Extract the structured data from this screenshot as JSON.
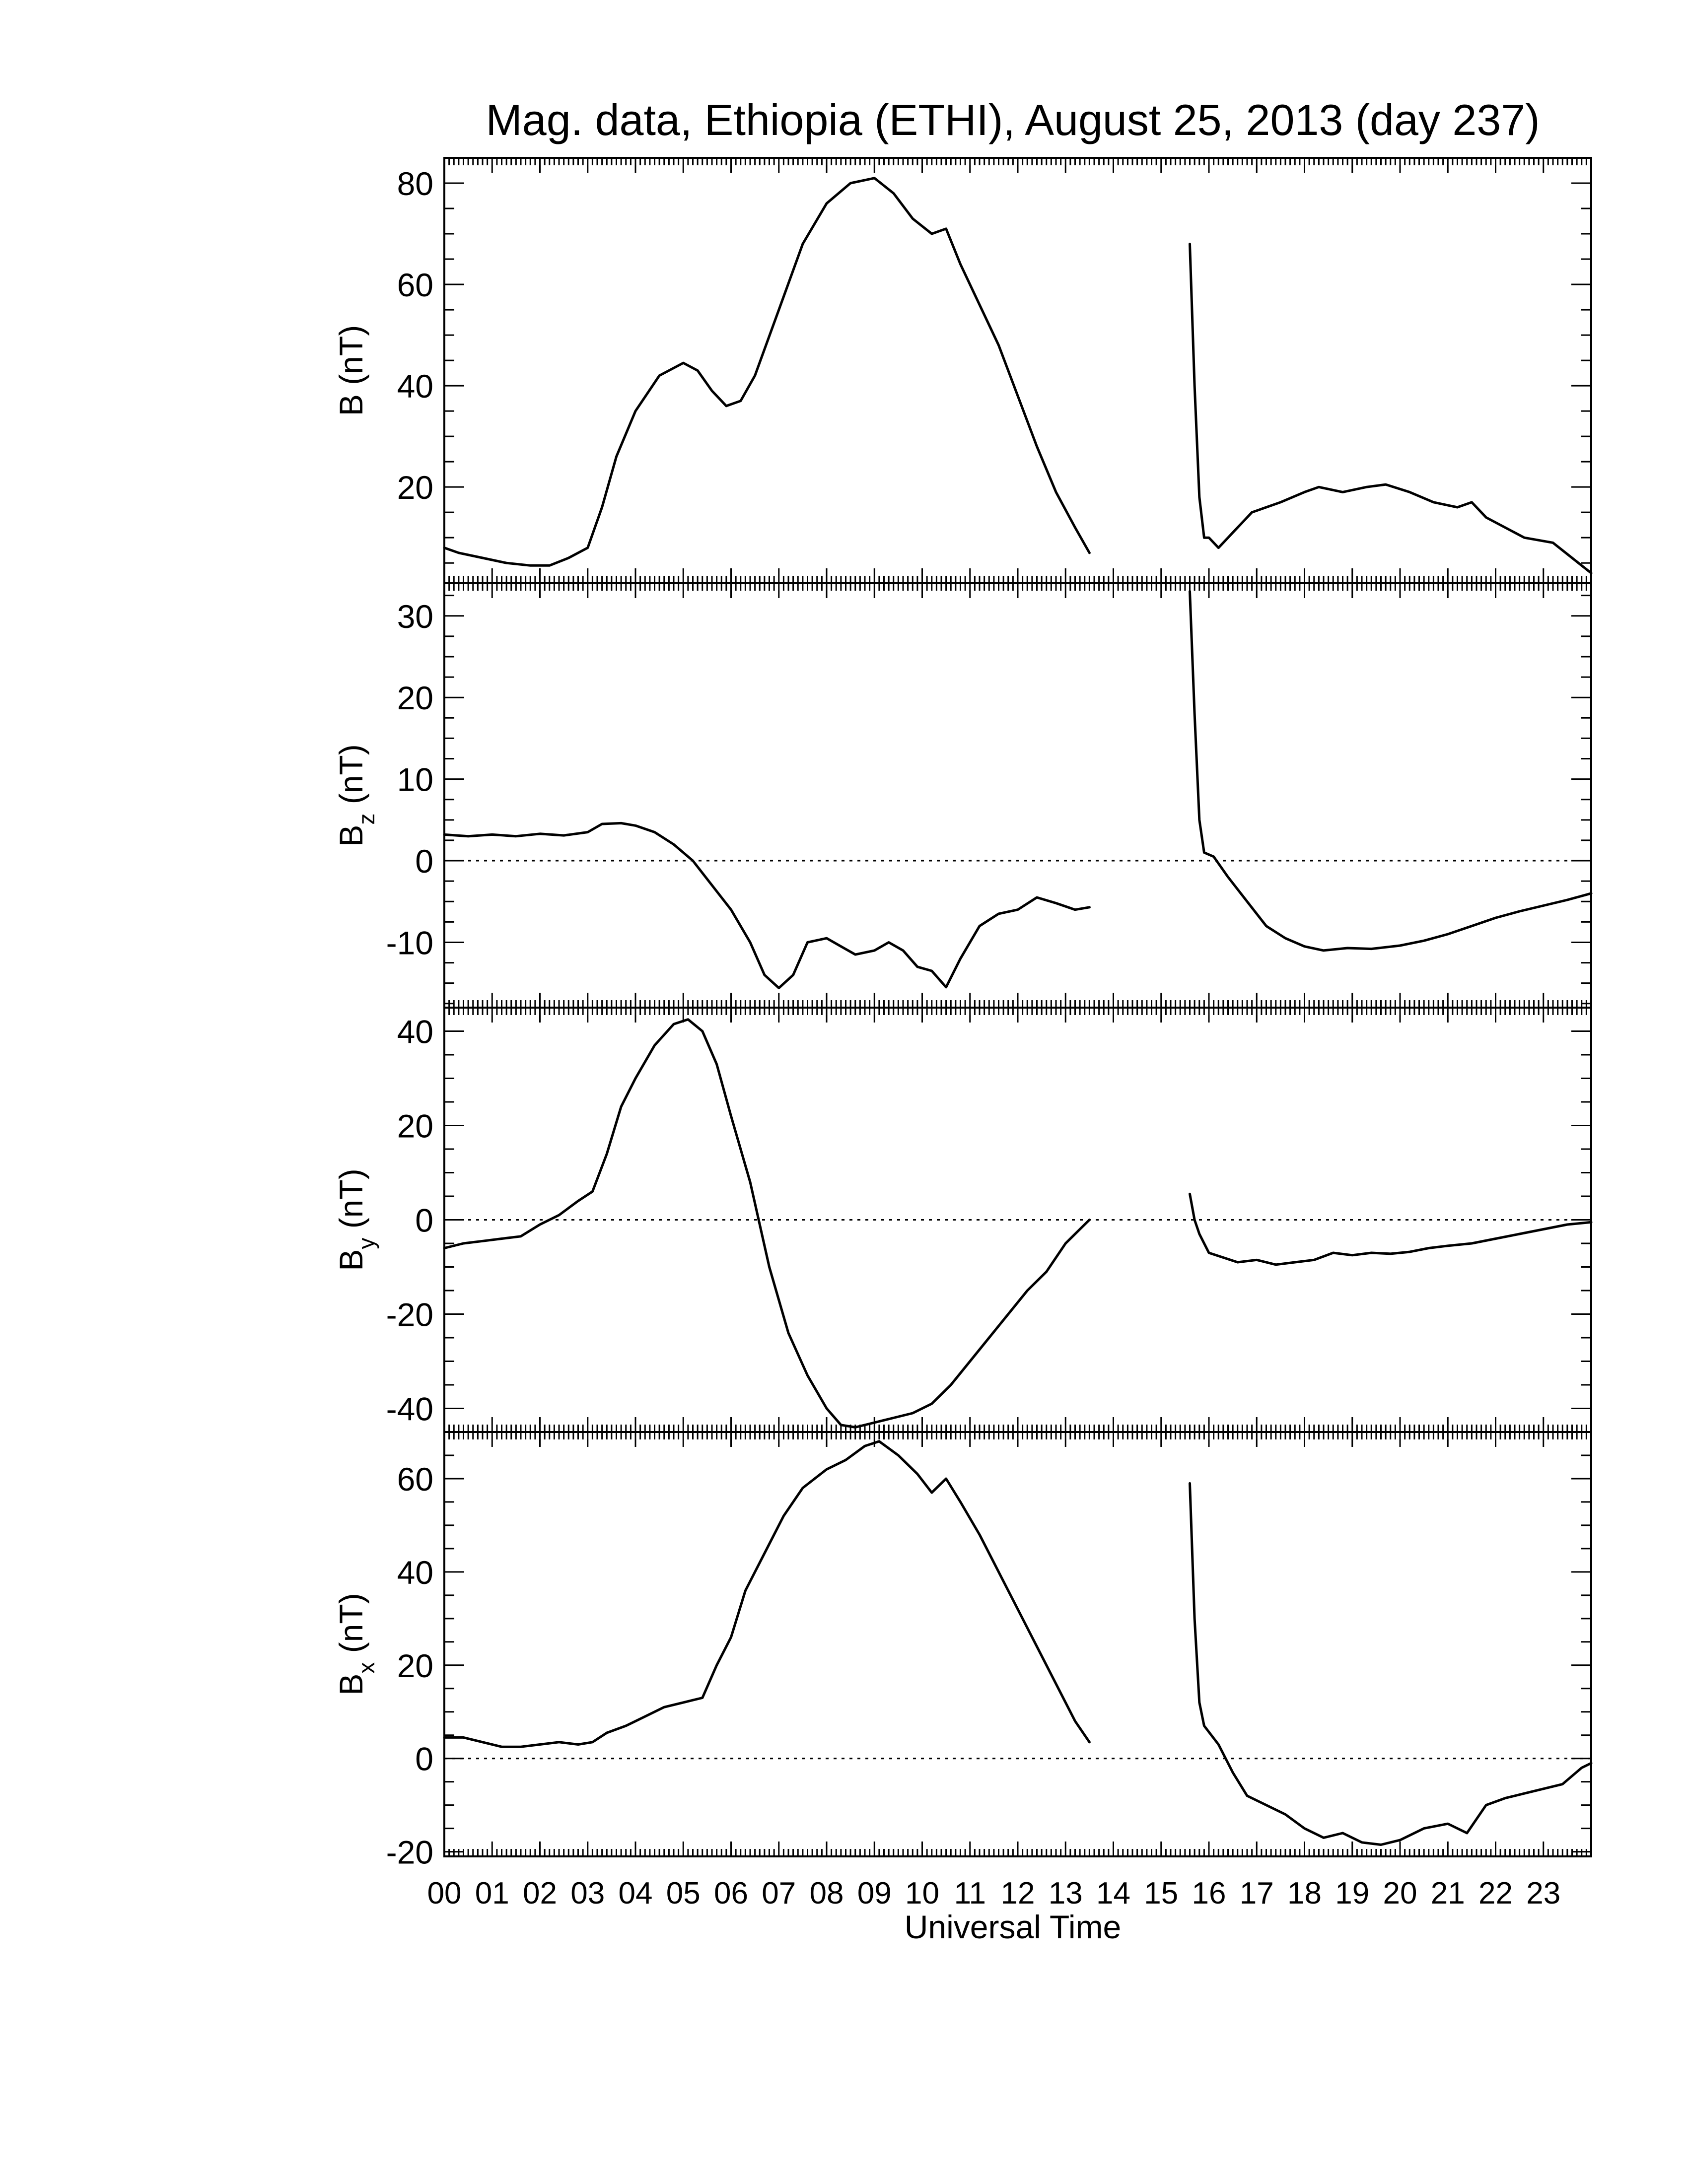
{
  "chart_data": {
    "type": "line",
    "title": "Mag. data, Ethiopia (ETHI), August 25, 2013 (day 237)",
    "xlabel": "Universal Time",
    "xlim": [
      0,
      24
    ],
    "x_tick_labels": [
      "00",
      "01",
      "02",
      "03",
      "04",
      "05",
      "06",
      "07",
      "08",
      "09",
      "10",
      "11",
      "12",
      "13",
      "14",
      "15",
      "16",
      "17",
      "18",
      "19",
      "20",
      "21",
      "22",
      "23"
    ],
    "panels": [
      {
        "id": "B",
        "ylabel_main": "B",
        "ylabel_sub": "",
        "ylabel_unit": "(nT)",
        "ylim": [
          1,
          85
        ],
        "yticks": [
          20,
          40,
          60,
          80
        ],
        "zero_line": false,
        "segments": [
          [
            [
              0.0,
              8
            ],
            [
              0.3,
              7
            ],
            [
              0.8,
              6
            ],
            [
              1.3,
              5
            ],
            [
              1.8,
              4.5
            ],
            [
              2.2,
              4.5
            ],
            [
              2.6,
              6
            ],
            [
              3.0,
              8
            ],
            [
              3.3,
              16
            ],
            [
              3.6,
              26
            ],
            [
              4.0,
              35
            ],
            [
              4.5,
              42
            ],
            [
              5.0,
              44.5
            ],
            [
              5.3,
              43
            ],
            [
              5.6,
              39
            ],
            [
              5.9,
              36
            ],
            [
              6.2,
              37
            ],
            [
              6.5,
              42
            ],
            [
              7.0,
              55
            ],
            [
              7.5,
              68
            ],
            [
              8.0,
              76
            ],
            [
              8.5,
              80
            ],
            [
              9.0,
              81
            ],
            [
              9.4,
              78
            ],
            [
              9.8,
              73
            ],
            [
              10.2,
              70
            ],
            [
              10.5,
              71
            ],
            [
              10.8,
              64
            ],
            [
              11.2,
              56
            ],
            [
              11.6,
              48
            ],
            [
              12.0,
              38
            ],
            [
              12.4,
              28
            ],
            [
              12.8,
              19
            ],
            [
              13.2,
              12
            ],
            [
              13.5,
              7
            ]
          ],
          [
            [
              15.6,
              68
            ],
            [
              15.7,
              40
            ],
            [
              15.8,
              18
            ],
            [
              15.9,
              10
            ],
            [
              16.0,
              10
            ],
            [
              16.2,
              8
            ],
            [
              16.5,
              11
            ],
            [
              16.9,
              15
            ],
            [
              17.5,
              17
            ],
            [
              18.0,
              19
            ],
            [
              18.3,
              20
            ],
            [
              18.8,
              19
            ],
            [
              19.3,
              20
            ],
            [
              19.7,
              20.5
            ],
            [
              20.2,
              19
            ],
            [
              20.7,
              17
            ],
            [
              21.2,
              16
            ],
            [
              21.5,
              17
            ],
            [
              21.8,
              14
            ],
            [
              22.2,
              12
            ],
            [
              22.6,
              10
            ],
            [
              23.2,
              9
            ],
            [
              23.6,
              6
            ],
            [
              24.0,
              3
            ]
          ]
        ]
      },
      {
        "id": "Bz",
        "ylabel_main": "B",
        "ylabel_sub": "z",
        "ylabel_unit": "(nT)",
        "ylim": [
          -18,
          34
        ],
        "yticks": [
          -10,
          0,
          10,
          20,
          30
        ],
        "zero_line": true,
        "segments": [
          [
            [
              0.0,
              3.2
            ],
            [
              0.5,
              3
            ],
            [
              1.0,
              3.2
            ],
            [
              1.5,
              3
            ],
            [
              2.0,
              3.3
            ],
            [
              2.5,
              3.1
            ],
            [
              3.0,
              3.5
            ],
            [
              3.3,
              4.5
            ],
            [
              3.7,
              4.6
            ],
            [
              4.0,
              4.3
            ],
            [
              4.4,
              3.5
            ],
            [
              4.8,
              2
            ],
            [
              5.2,
              0
            ],
            [
              5.6,
              -3
            ],
            [
              6.0,
              -6
            ],
            [
              6.4,
              -10
            ],
            [
              6.7,
              -14
            ],
            [
              7.0,
              -15.6
            ],
            [
              7.3,
              -14
            ],
            [
              7.6,
              -10
            ],
            [
              8.0,
              -9.5
            ],
            [
              8.3,
              -10.5
            ],
            [
              8.6,
              -11.5
            ],
            [
              9.0,
              -11
            ],
            [
              9.3,
              -10
            ],
            [
              9.6,
              -11
            ],
            [
              9.9,
              -13
            ],
            [
              10.2,
              -13.5
            ],
            [
              10.5,
              -15.5
            ],
            [
              10.8,
              -12
            ],
            [
              11.2,
              -8
            ],
            [
              11.6,
              -6.5
            ],
            [
              12.0,
              -6
            ],
            [
              12.4,
              -4.5
            ],
            [
              12.8,
              -5.2
            ],
            [
              13.2,
              -6
            ],
            [
              13.5,
              -5.7
            ]
          ],
          [
            [
              15.6,
              33
            ],
            [
              15.7,
              18
            ],
            [
              15.8,
              5
            ],
            [
              15.9,
              1
            ],
            [
              16.1,
              0.5
            ],
            [
              16.4,
              -2
            ],
            [
              16.8,
              -5
            ],
            [
              17.2,
              -8
            ],
            [
              17.6,
              -9.5
            ],
            [
              18.0,
              -10.5
            ],
            [
              18.4,
              -11
            ],
            [
              18.9,
              -10.7
            ],
            [
              19.4,
              -10.8
            ],
            [
              20.0,
              -10.4
            ],
            [
              20.5,
              -9.8
            ],
            [
              21.0,
              -9
            ],
            [
              21.5,
              -8
            ],
            [
              22.0,
              -7
            ],
            [
              22.5,
              -6.2
            ],
            [
              23.0,
              -5.5
            ],
            [
              23.5,
              -4.8
            ],
            [
              24.0,
              -4
            ]
          ]
        ]
      },
      {
        "id": "By",
        "ylabel_main": "B",
        "ylabel_sub": "y",
        "ylabel_unit": "(nT)",
        "ylim": [
          -45,
          45
        ],
        "yticks": [
          -40,
          -20,
          0,
          20,
          40
        ],
        "zero_line": true,
        "segments": [
          [
            [
              0.0,
              -6
            ],
            [
              0.4,
              -5
            ],
            [
              0.8,
              -4.5
            ],
            [
              1.2,
              -4
            ],
            [
              1.6,
              -3.5
            ],
            [
              2.0,
              -1
            ],
            [
              2.4,
              1
            ],
            [
              2.8,
              4
            ],
            [
              3.1,
              6
            ],
            [
              3.4,
              14
            ],
            [
              3.7,
              24
            ],
            [
              4.0,
              30
            ],
            [
              4.4,
              37
            ],
            [
              4.8,
              41.5
            ],
            [
              5.1,
              42.5
            ],
            [
              5.4,
              40
            ],
            [
              5.7,
              33
            ],
            [
              6.0,
              22
            ],
            [
              6.4,
              8
            ],
            [
              6.8,
              -10
            ],
            [
              7.2,
              -24
            ],
            [
              7.6,
              -33
            ],
            [
              8.0,
              -40
            ],
            [
              8.3,
              -43.5
            ],
            [
              8.6,
              -44
            ],
            [
              9.0,
              -43
            ],
            [
              9.4,
              -42
            ],
            [
              9.8,
              -41
            ],
            [
              10.2,
              -39
            ],
            [
              10.6,
              -35
            ],
            [
              11.0,
              -30
            ],
            [
              11.4,
              -25
            ],
            [
              11.8,
              -20
            ],
            [
              12.2,
              -15
            ],
            [
              12.6,
              -11
            ],
            [
              13.0,
              -5
            ],
            [
              13.3,
              -2
            ],
            [
              13.5,
              0
            ]
          ],
          [
            [
              15.6,
              5.5
            ],
            [
              15.7,
              0
            ],
            [
              15.8,
              -3
            ],
            [
              16.0,
              -7
            ],
            [
              16.3,
              -8
            ],
            [
              16.6,
              -9
            ],
            [
              17.0,
              -8.5
            ],
            [
              17.4,
              -9.5
            ],
            [
              17.8,
              -9
            ],
            [
              18.2,
              -8.5
            ],
            [
              18.6,
              -7
            ],
            [
              19.0,
              -7.5
            ],
            [
              19.4,
              -7
            ],
            [
              19.8,
              -7.2
            ],
            [
              20.2,
              -6.8
            ],
            [
              20.6,
              -6
            ],
            [
              21.0,
              -5.5
            ],
            [
              21.5,
              -5
            ],
            [
              22.0,
              -4
            ],
            [
              22.5,
              -3
            ],
            [
              23.0,
              -2
            ],
            [
              23.5,
              -1
            ],
            [
              24.0,
              -0.5
            ]
          ]
        ]
      },
      {
        "id": "Bx",
        "ylabel_main": "B",
        "ylabel_sub": "x",
        "ylabel_unit": "(nT)",
        "ylim": [
          -21,
          70
        ],
        "yticks": [
          -20,
          0,
          20,
          40,
          60
        ],
        "zero_line": true,
        "segments": [
          [
            [
              0.0,
              4.5
            ],
            [
              0.4,
              4.5
            ],
            [
              0.8,
              3.5
            ],
            [
              1.2,
              2.5
            ],
            [
              1.6,
              2.5
            ],
            [
              2.0,
              3
            ],
            [
              2.4,
              3.5
            ],
            [
              2.8,
              3
            ],
            [
              3.1,
              3.5
            ],
            [
              3.4,
              5.5
            ],
            [
              3.8,
              7
            ],
            [
              4.2,
              9
            ],
            [
              4.6,
              11
            ],
            [
              5.0,
              12
            ],
            [
              5.4,
              13
            ],
            [
              5.7,
              20
            ],
            [
              6.0,
              26
            ],
            [
              6.3,
              36
            ],
            [
              6.7,
              44
            ],
            [
              7.1,
              52
            ],
            [
              7.5,
              58
            ],
            [
              8.0,
              62
            ],
            [
              8.4,
              64
            ],
            [
              8.8,
              67
            ],
            [
              9.1,
              68
            ],
            [
              9.5,
              65
            ],
            [
              9.9,
              61
            ],
            [
              10.2,
              57
            ],
            [
              10.5,
              60
            ],
            [
              10.8,
              55
            ],
            [
              11.2,
              48
            ],
            [
              11.6,
              40
            ],
            [
              12.0,
              32
            ],
            [
              12.4,
              24
            ],
            [
              12.8,
              16
            ],
            [
              13.2,
              8
            ],
            [
              13.5,
              3.5
            ]
          ],
          [
            [
              15.6,
              59
            ],
            [
              15.7,
              30
            ],
            [
              15.8,
              12
            ],
            [
              15.9,
              7
            ],
            [
              16.2,
              3
            ],
            [
              16.5,
              -3
            ],
            [
              16.8,
              -8
            ],
            [
              17.2,
              -10
            ],
            [
              17.6,
              -12
            ],
            [
              18.0,
              -15
            ],
            [
              18.4,
              -17
            ],
            [
              18.8,
              -16
            ],
            [
              19.2,
              -18
            ],
            [
              19.6,
              -18.5
            ],
            [
              20.0,
              -17.5
            ],
            [
              20.5,
              -15
            ],
            [
              21.0,
              -14
            ],
            [
              21.4,
              -16
            ],
            [
              21.8,
              -10
            ],
            [
              22.2,
              -8.5
            ],
            [
              22.6,
              -7.5
            ],
            [
              23.0,
              -6.5
            ],
            [
              23.4,
              -5.5
            ],
            [
              23.8,
              -2
            ],
            [
              24.0,
              -1
            ]
          ]
        ]
      }
    ]
  }
}
